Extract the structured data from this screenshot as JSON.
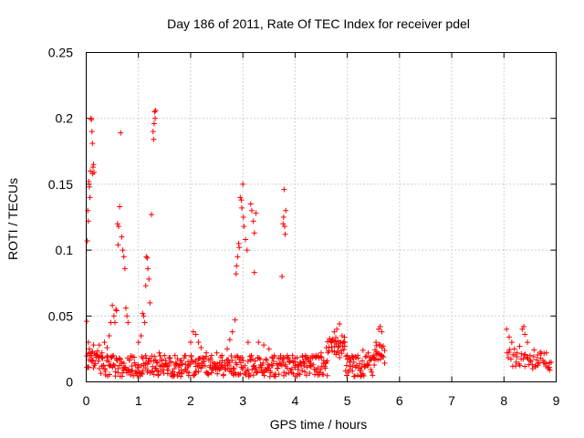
{
  "chart_data": {
    "type": "scatter",
    "title": "Day 186 of 2011, Rate Of TEC Index for receiver pdel",
    "xlabel": "GPS time / hours",
    "ylabel": "ROTI / TECUs",
    "xlim": [
      0,
      9
    ],
    "ylim": [
      0,
      0.25
    ],
    "xticks": [
      0,
      1,
      2,
      3,
      4,
      5,
      6,
      7,
      8,
      9
    ],
    "yticks": [
      0,
      0.05,
      0.1,
      0.15,
      0.2,
      0.25
    ],
    "xtick_labels": [
      "0",
      "1",
      "2",
      "3",
      "4",
      "5",
      "6",
      "7",
      "8",
      "9"
    ],
    "ytick_labels": [
      "0",
      "0.05",
      "0.1",
      "0.15",
      "0.2",
      "0.25"
    ],
    "grid": true,
    "marker": "+",
    "color": "#ff0000",
    "series": [
      {
        "name": "ROTI",
        "points": [
          [
            0.01,
            0.046
          ],
          [
            0.02,
            0.107
          ],
          [
            0.03,
            0.13
          ],
          [
            0.04,
            0.122
          ],
          [
            0.05,
            0.152
          ],
          [
            0.06,
            0.148
          ],
          [
            0.07,
            0.14
          ],
          [
            0.08,
            0.16
          ],
          [
            0.09,
            0.2
          ],
          [
            0.1,
            0.199
          ],
          [
            0.11,
            0.19
          ],
          [
            0.12,
            0.181
          ],
          [
            0.12,
            0.158
          ],
          [
            0.13,
            0.163
          ],
          [
            0.14,
            0.165
          ],
          [
            0.15,
            0.159
          ],
          [
            0.04,
            0.03
          ],
          [
            0.06,
            0.025
          ],
          [
            0.1,
            0.022
          ],
          [
            0.14,
            0.028
          ],
          [
            0.18,
            0.02
          ],
          [
            0.25,
            0.028
          ],
          [
            0.3,
            0.022
          ],
          [
            0.35,
            0.03
          ],
          [
            0.4,
            0.026
          ],
          [
            0.44,
            0.035
          ],
          [
            0.47,
            0.045
          ],
          [
            0.5,
            0.058
          ],
          [
            0.53,
            0.05
          ],
          [
            0.55,
            0.045
          ],
          [
            0.57,
            0.055
          ],
          [
            0.58,
            0.054
          ],
          [
            0.6,
            0.12
          ],
          [
            0.61,
            0.104
          ],
          [
            0.62,
            0.118
          ],
          [
            0.64,
            0.133
          ],
          [
            0.66,
            0.189
          ],
          [
            0.68,
            0.11
          ],
          [
            0.7,
            0.1
          ],
          [
            0.72,
            0.095
          ],
          [
            0.74,
            0.086
          ],
          [
            0.76,
            0.056
          ],
          [
            0.78,
            0.05
          ],
          [
            0.8,
            0.045
          ],
          [
            1.0,
            0.03
          ],
          [
            1.05,
            0.035
          ],
          [
            1.08,
            0.052
          ],
          [
            1.1,
            0.05
          ],
          [
            1.12,
            0.045
          ],
          [
            1.14,
            0.073
          ],
          [
            1.15,
            0.095
          ],
          [
            1.17,
            0.094
          ],
          [
            1.18,
            0.086
          ],
          [
            1.2,
            0.078
          ],
          [
            1.22,
            0.06
          ],
          [
            1.25,
            0.127
          ],
          [
            1.28,
            0.19
          ],
          [
            1.29,
            0.184
          ],
          [
            1.3,
            0.196
          ],
          [
            1.31,
            0.205
          ],
          [
            1.32,
            0.2
          ],
          [
            1.33,
            0.206
          ],
          [
            1.4,
            0.022
          ],
          [
            1.5,
            0.02
          ],
          [
            1.6,
            0.018
          ],
          [
            1.7,
            0.02
          ],
          [
            1.8,
            0.016
          ],
          [
            1.9,
            0.02
          ],
          [
            2.0,
            0.03
          ],
          [
            2.05,
            0.038
          ],
          [
            2.1,
            0.036
          ],
          [
            2.15,
            0.03
          ],
          [
            2.2,
            0.026
          ],
          [
            2.3,
            0.022
          ],
          [
            2.4,
            0.02
          ],
          [
            2.5,
            0.022
          ],
          [
            2.6,
            0.02
          ],
          [
            2.7,
            0.025
          ],
          [
            2.75,
            0.032
          ],
          [
            2.8,
            0.038
          ],
          [
            2.85,
            0.047
          ],
          [
            2.87,
            0.082
          ],
          [
            2.88,
            0.088
          ],
          [
            2.9,
            0.095
          ],
          [
            2.92,
            0.105
          ],
          [
            2.93,
            0.102
          ],
          [
            2.95,
            0.14
          ],
          [
            2.97,
            0.138
          ],
          [
            2.98,
            0.132
          ],
          [
            3.0,
            0.15
          ],
          [
            3.01,
            0.125
          ],
          [
            3.02,
            0.118
          ],
          [
            3.05,
            0.108
          ],
          [
            3.08,
            0.1
          ],
          [
            3.1,
            0.03
          ],
          [
            3.15,
            0.135
          ],
          [
            3.17,
            0.13
          ],
          [
            3.2,
            0.122
          ],
          [
            3.22,
            0.113
          ],
          [
            3.25,
            0.128
          ],
          [
            3.22,
            0.083
          ],
          [
            3.3,
            0.03
          ],
          [
            3.4,
            0.028
          ],
          [
            3.5,
            0.025
          ],
          [
            3.6,
            0.02
          ],
          [
            3.75,
            0.08
          ],
          [
            3.77,
            0.12
          ],
          [
            3.78,
            0.125
          ],
          [
            3.8,
            0.118
          ],
          [
            3.81,
            0.112
          ],
          [
            3.79,
            0.146
          ],
          [
            3.82,
            0.13
          ],
          [
            3.85,
            0.02
          ],
          [
            3.9,
            0.015
          ],
          [
            4.0,
            0.018
          ],
          [
            4.1,
            0.015
          ],
          [
            4.2,
            0.02
          ],
          [
            4.3,
            0.018
          ],
          [
            4.4,
            0.02
          ],
          [
            4.5,
            0.022
          ],
          [
            4.6,
            0.026
          ],
          [
            4.7,
            0.03
          ],
          [
            4.75,
            0.038
          ],
          [
            4.8,
            0.04
          ],
          [
            4.85,
            0.044
          ],
          [
            4.9,
            0.035
          ],
          [
            4.95,
            0.03
          ],
          [
            5.0,
            0.02
          ],
          [
            5.05,
            0.015
          ],
          [
            5.1,
            0.012
          ],
          [
            5.2,
            0.02
          ],
          [
            5.3,
            0.024
          ],
          [
            5.4,
            0.022
          ],
          [
            5.5,
            0.02
          ],
          [
            5.55,
            0.03
          ],
          [
            5.6,
            0.04
          ],
          [
            5.63,
            0.042
          ],
          [
            5.66,
            0.038
          ],
          [
            8.05,
            0.04
          ],
          [
            8.1,
            0.034
          ],
          [
            8.15,
            0.03
          ],
          [
            8.2,
            0.025
          ],
          [
            8.25,
            0.022
          ],
          [
            8.3,
            0.027
          ],
          [
            8.35,
            0.04
          ],
          [
            8.38,
            0.042
          ],
          [
            8.4,
            0.036
          ],
          [
            8.45,
            0.03
          ],
          [
            8.5,
            0.02
          ],
          [
            8.55,
            0.01
          ],
          [
            8.6,
            0.012
          ],
          [
            8.65,
            0.014
          ],
          [
            8.7,
            0.018
          ],
          [
            8.75,
            0.015
          ],
          [
            8.8,
            0.012
          ],
          [
            8.85,
            0.01
          ],
          [
            8.88,
            0.009
          ]
        ]
      }
    ]
  }
}
